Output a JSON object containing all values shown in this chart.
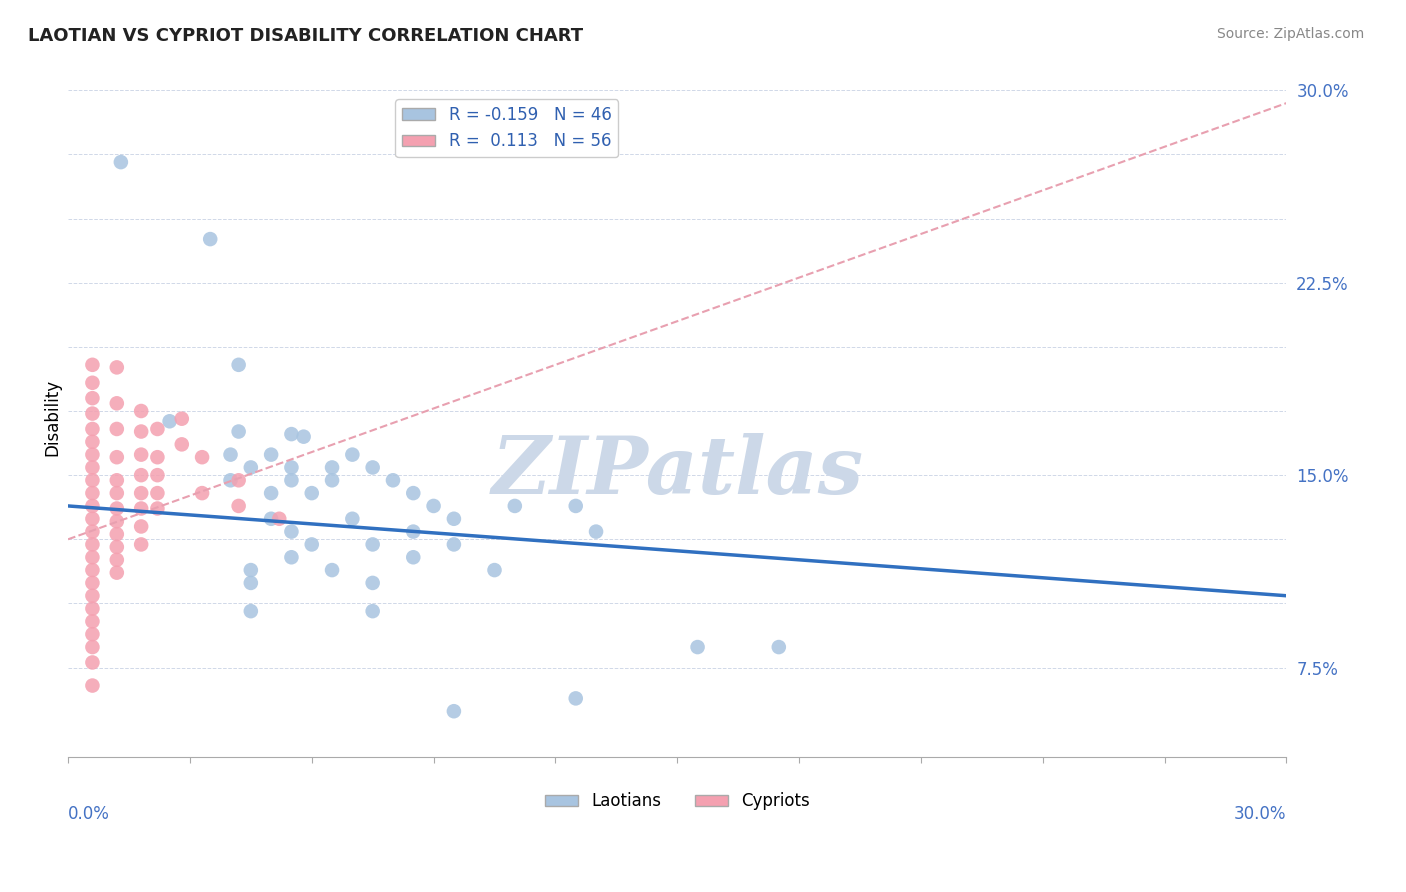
{
  "title": "LAOTIAN VS CYPRIOT DISABILITY CORRELATION CHART",
  "source": "Source: ZipAtlas.com",
  "ylabel": "Disability",
  "xmin": 0.0,
  "xmax": 0.3,
  "ymin": 0.04,
  "ymax": 0.305,
  "r_laotian": -0.159,
  "n_laotian": 46,
  "r_cypriot": 0.113,
  "n_cypriot": 56,
  "laotian_color": "#a8c4e0",
  "cypriot_color": "#f4a0b0",
  "laotian_line_color": "#3070c0",
  "cypriot_line_color": "#e07090",
  "cypriot_dash_color": "#e8a0b0",
  "watermark": "ZIPatlas",
  "watermark_color": "#ccd8e8",
  "laotian_line_x0": 0.0,
  "laotian_line_y0": 0.138,
  "laotian_line_x1": 0.3,
  "laotian_line_y1": 0.103,
  "cypriot_line_x0": 0.0,
  "cypriot_line_y0": 0.125,
  "cypriot_line_x1": 0.3,
  "cypriot_line_y1": 0.295,
  "laotian_points": [
    [
      0.013,
      0.272
    ],
    [
      0.035,
      0.242
    ],
    [
      0.042,
      0.193
    ],
    [
      0.025,
      0.171
    ],
    [
      0.042,
      0.167
    ],
    [
      0.055,
      0.166
    ],
    [
      0.058,
      0.165
    ],
    [
      0.04,
      0.158
    ],
    [
      0.05,
      0.158
    ],
    [
      0.07,
      0.158
    ],
    [
      0.045,
      0.153
    ],
    [
      0.055,
      0.153
    ],
    [
      0.065,
      0.153
    ],
    [
      0.075,
      0.153
    ],
    [
      0.04,
      0.148
    ],
    [
      0.055,
      0.148
    ],
    [
      0.065,
      0.148
    ],
    [
      0.08,
      0.148
    ],
    [
      0.05,
      0.143
    ],
    [
      0.06,
      0.143
    ],
    [
      0.085,
      0.143
    ],
    [
      0.09,
      0.138
    ],
    [
      0.11,
      0.138
    ],
    [
      0.125,
      0.138
    ],
    [
      0.05,
      0.133
    ],
    [
      0.07,
      0.133
    ],
    [
      0.095,
      0.133
    ],
    [
      0.055,
      0.128
    ],
    [
      0.085,
      0.128
    ],
    [
      0.13,
      0.128
    ],
    [
      0.06,
      0.123
    ],
    [
      0.075,
      0.123
    ],
    [
      0.095,
      0.123
    ],
    [
      0.055,
      0.118
    ],
    [
      0.085,
      0.118
    ],
    [
      0.045,
      0.113
    ],
    [
      0.065,
      0.113
    ],
    [
      0.105,
      0.113
    ],
    [
      0.045,
      0.108
    ],
    [
      0.075,
      0.108
    ],
    [
      0.045,
      0.097
    ],
    [
      0.075,
      0.097
    ],
    [
      0.155,
      0.083
    ],
    [
      0.175,
      0.083
    ],
    [
      0.125,
      0.063
    ],
    [
      0.095,
      0.058
    ]
  ],
  "cypriot_points": [
    [
      0.006,
      0.193
    ],
    [
      0.006,
      0.186
    ],
    [
      0.006,
      0.18
    ],
    [
      0.006,
      0.174
    ],
    [
      0.006,
      0.168
    ],
    [
      0.006,
      0.163
    ],
    [
      0.006,
      0.158
    ],
    [
      0.006,
      0.153
    ],
    [
      0.006,
      0.148
    ],
    [
      0.006,
      0.143
    ],
    [
      0.006,
      0.138
    ],
    [
      0.006,
      0.133
    ],
    [
      0.006,
      0.128
    ],
    [
      0.006,
      0.123
    ],
    [
      0.006,
      0.118
    ],
    [
      0.006,
      0.113
    ],
    [
      0.006,
      0.108
    ],
    [
      0.006,
      0.103
    ],
    [
      0.006,
      0.098
    ],
    [
      0.006,
      0.093
    ],
    [
      0.006,
      0.088
    ],
    [
      0.006,
      0.083
    ],
    [
      0.006,
      0.077
    ],
    [
      0.006,
      0.068
    ],
    [
      0.012,
      0.192
    ],
    [
      0.012,
      0.178
    ],
    [
      0.012,
      0.168
    ],
    [
      0.012,
      0.157
    ],
    [
      0.012,
      0.148
    ],
    [
      0.012,
      0.143
    ],
    [
      0.012,
      0.137
    ],
    [
      0.012,
      0.132
    ],
    [
      0.012,
      0.127
    ],
    [
      0.012,
      0.122
    ],
    [
      0.012,
      0.117
    ],
    [
      0.012,
      0.112
    ],
    [
      0.018,
      0.175
    ],
    [
      0.018,
      0.167
    ],
    [
      0.018,
      0.158
    ],
    [
      0.018,
      0.15
    ],
    [
      0.018,
      0.143
    ],
    [
      0.018,
      0.137
    ],
    [
      0.018,
      0.13
    ],
    [
      0.018,
      0.123
    ],
    [
      0.022,
      0.168
    ],
    [
      0.022,
      0.157
    ],
    [
      0.022,
      0.15
    ],
    [
      0.022,
      0.143
    ],
    [
      0.022,
      0.137
    ],
    [
      0.028,
      0.172
    ],
    [
      0.028,
      0.162
    ],
    [
      0.033,
      0.157
    ],
    [
      0.033,
      0.143
    ],
    [
      0.042,
      0.148
    ],
    [
      0.042,
      0.138
    ],
    [
      0.052,
      0.133
    ]
  ]
}
